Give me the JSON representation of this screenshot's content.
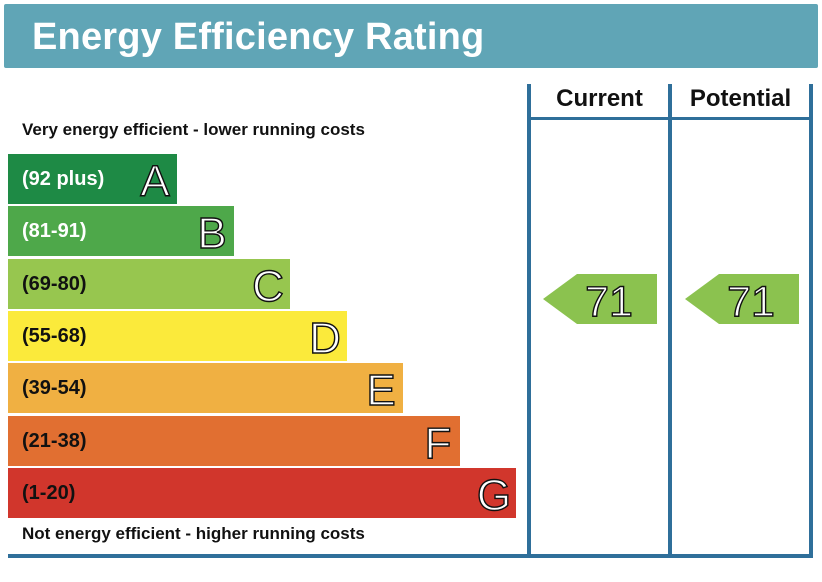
{
  "title": "Energy Efficiency Rating",
  "top_note": "Very energy efficient - lower running costs",
  "bottom_note": "Not energy efficient - higher running costs",
  "columns": {
    "current": "Current",
    "potential": "Potential"
  },
  "colors": {
    "header": "#60a5b6",
    "frame": "#2f6f9a",
    "rating_arrow": "#8bc24f"
  },
  "chart_data": {
    "type": "table",
    "bands": [
      {
        "letter": "A",
        "range": "(92 plus)",
        "min": 92,
        "max": 100,
        "color": "#1e8a45"
      },
      {
        "letter": "B",
        "range": "(81-91)",
        "min": 81,
        "max": 91,
        "color": "#4ea84a"
      },
      {
        "letter": "C",
        "range": "(69-80)",
        "min": 69,
        "max": 80,
        "color": "#97c64f"
      },
      {
        "letter": "D",
        "range": "(55-68)",
        "min": 55,
        "max": 68,
        "color": "#fbea3b"
      },
      {
        "letter": "E",
        "range": "(39-54)",
        "min": 39,
        "max": 54,
        "color": "#f0b042"
      },
      {
        "letter": "F",
        "range": "(21-38)",
        "min": 21,
        "max": 38,
        "color": "#e16f31"
      },
      {
        "letter": "G",
        "range": "(1-20)",
        "min": 1,
        "max": 20,
        "color": "#d1362c"
      }
    ],
    "current": 71,
    "current_label": "71",
    "potential": 71,
    "potential_label": "71"
  }
}
